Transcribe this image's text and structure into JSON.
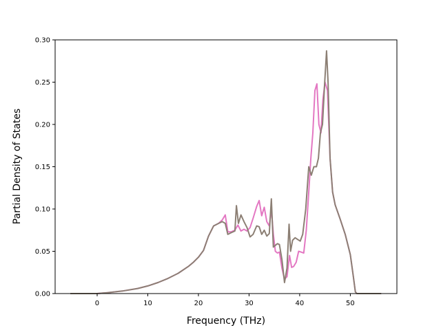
{
  "chart_data": {
    "type": "line",
    "title": "",
    "xlabel": "Frequency (THz)",
    "ylabel": "Partial Density of States",
    "xlim": [
      -8.3,
      59.2
    ],
    "ylim": [
      0.0,
      0.3
    ],
    "x_ticks": [
      0,
      10,
      20,
      30,
      40,
      50
    ],
    "y_ticks": [
      0.0,
      0.05,
      0.1,
      0.15,
      0.2,
      0.25,
      0.3
    ],
    "x_tick_labels": [
      "0",
      "10",
      "20",
      "30",
      "40",
      "50"
    ],
    "y_tick_labels": [
      "0.00",
      "0.05",
      "0.10",
      "0.15",
      "0.20",
      "0.25",
      "0.30"
    ],
    "grid": false,
    "legend": null,
    "series": [
      {
        "color": "#e377c2",
        "x": [
          -5.3,
          0,
          2,
          5,
          8,
          10,
          12,
          14,
          16,
          18,
          19,
          20,
          21,
          22,
          23,
          24,
          24.7,
          25.3,
          25.8,
          26.5,
          27.2,
          27.8,
          28.4,
          29,
          29.6,
          30.2,
          30.8,
          31.5,
          32,
          32.5,
          33,
          33.5,
          34,
          34.4,
          34.8,
          35.2,
          35.6,
          36,
          36.5,
          37,
          37.5,
          38,
          38.4,
          38.8,
          39.3,
          39.8,
          40.3,
          40.8,
          41.3,
          41.8,
          42.2,
          42.6,
          43,
          43.4,
          43.8,
          44.2,
          44.6,
          45,
          45.5,
          46,
          46.5,
          47,
          48,
          49,
          50,
          50.6,
          51,
          51.3,
          52,
          54,
          56.1
        ],
        "y": [
          0.0,
          0.0,
          0.001,
          0.003,
          0.006,
          0.009,
          0.013,
          0.018,
          0.024,
          0.032,
          0.037,
          0.043,
          0.051,
          0.068,
          0.08,
          0.083,
          0.087,
          0.093,
          0.073,
          0.073,
          0.075,
          0.081,
          0.074,
          0.076,
          0.074,
          0.078,
          0.089,
          0.103,
          0.11,
          0.092,
          0.102,
          0.085,
          0.08,
          0.1,
          0.07,
          0.05,
          0.048,
          0.049,
          0.03,
          0.017,
          0.02,
          0.045,
          0.031,
          0.032,
          0.037,
          0.05,
          0.049,
          0.048,
          0.075,
          0.12,
          0.16,
          0.19,
          0.24,
          0.248,
          0.2,
          0.19,
          0.23,
          0.25,
          0.24,
          0.16,
          0.12,
          0.105,
          0.088,
          0.07,
          0.046,
          0.02,
          0.002,
          0.0,
          0.0,
          0.0,
          0.0
        ]
      },
      {
        "color": "#8c7f74",
        "x": [
          -5.3,
          0,
          2,
          5,
          8,
          10,
          12,
          14,
          16,
          18,
          19,
          20,
          21,
          22,
          23,
          24,
          24.7,
          25.3,
          25.8,
          26.5,
          27.2,
          27.5,
          27.9,
          28.4,
          29,
          29.6,
          30.2,
          30.8,
          31.5,
          32,
          32.5,
          33,
          33.5,
          34,
          34.4,
          34.8,
          35.2,
          35.6,
          36,
          36.5,
          37,
          37.5,
          37.9,
          38.2,
          38.6,
          39.1,
          39.6,
          40.1,
          40.6,
          41.2,
          41.8,
          42.3,
          42.8,
          43.3,
          43.7,
          44.1,
          44.5,
          44.9,
          45.3,
          45.6,
          46,
          46.5,
          47,
          48,
          49,
          50,
          50.6,
          51,
          51.3,
          52,
          54,
          56.1
        ],
        "y": [
          0.0,
          0.0,
          0.001,
          0.003,
          0.006,
          0.009,
          0.013,
          0.018,
          0.024,
          0.032,
          0.037,
          0.043,
          0.051,
          0.068,
          0.08,
          0.083,
          0.085,
          0.083,
          0.07,
          0.072,
          0.074,
          0.104,
          0.083,
          0.093,
          0.085,
          0.078,
          0.067,
          0.07,
          0.08,
          0.079,
          0.07,
          0.075,
          0.068,
          0.071,
          0.112,
          0.055,
          0.057,
          0.059,
          0.058,
          0.04,
          0.013,
          0.03,
          0.082,
          0.05,
          0.063,
          0.066,
          0.064,
          0.062,
          0.07,
          0.1,
          0.15,
          0.14,
          0.15,
          0.15,
          0.16,
          0.19,
          0.2,
          0.245,
          0.287,
          0.25,
          0.16,
          0.12,
          0.105,
          0.088,
          0.07,
          0.046,
          0.02,
          0.002,
          0.0,
          0.0,
          0.0,
          0.0
        ]
      }
    ]
  }
}
